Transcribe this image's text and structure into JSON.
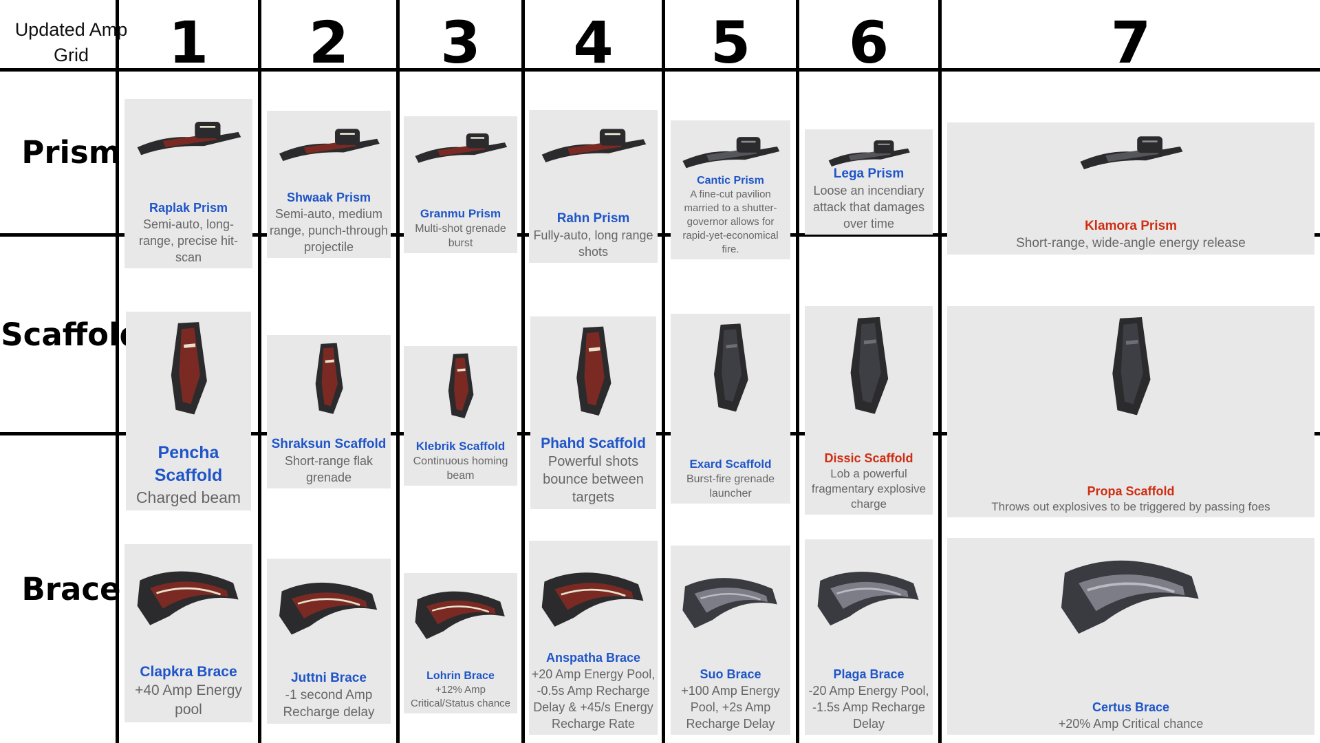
{
  "corner_label": "Updated Amp Grid",
  "columns": [
    "1",
    "2",
    "3",
    "4",
    "5",
    "6",
    "7"
  ],
  "rows": [
    "Prism",
    "Scaffold",
    "Brace"
  ],
  "colors": {
    "name_blue": "#1f55c8",
    "name_red": "#cf2e13",
    "desc_gray": "#666666",
    "grid_black": "#000000"
  },
  "cells": {
    "prism": [
      {
        "name": "Raplak Prism",
        "desc": "Semi-auto, long-range, precise hit-scan",
        "icon": "raplak-prism-icon",
        "name_color": "blue"
      },
      {
        "name": "Shwaak Prism",
        "desc": "Semi-auto, medium range, punch-through projectile",
        "icon": "shwaak-prism-icon",
        "name_color": "blue"
      },
      {
        "name": "Granmu Prism",
        "desc": "Multi-shot grenade burst",
        "icon": "granmu-prism-icon",
        "name_color": "blue"
      },
      {
        "name": "Rahn Prism",
        "desc": "Fully-auto, long range shots",
        "icon": "rahn-prism-icon",
        "name_color": "blue"
      },
      {
        "name": "Cantic Prism",
        "desc": "A fine-cut pavilion married to a shutter-governor allows for rapid-yet-economical fire.",
        "icon": "cantic-prism-icon",
        "name_color": "blue"
      },
      {
        "name": "Lega Prism",
        "desc": "Loose an incendiary attack that damages over time",
        "icon": "lega-prism-icon",
        "name_color": "blue"
      },
      {
        "name": "Klamora Prism",
        "desc": "Short-range, wide-angle energy release",
        "icon": "klamora-prism-icon",
        "name_color": "red"
      }
    ],
    "scaffold": [
      {
        "name": "Pencha Scaffold",
        "desc": "Charged beam",
        "icon": "pencha-scaffold-icon",
        "name_color": "blue"
      },
      {
        "name": "Shraksun Scaffold",
        "desc": "Short-range flak grenade",
        "icon": "shraksun-scaffold-icon",
        "name_color": "blue"
      },
      {
        "name": "Klebrik Scaffold",
        "desc": "Continuous homing beam",
        "icon": "klebrik-scaffold-icon",
        "name_color": "blue"
      },
      {
        "name": "Phahd Scaffold",
        "desc": "Powerful shots bounce between targets",
        "icon": "phahd-scaffold-icon",
        "name_color": "blue"
      },
      {
        "name": "Exard Scaffold",
        "desc": "Burst-fire grenade launcher",
        "icon": "exard-scaffold-icon",
        "name_color": "blue"
      },
      {
        "name": "Dissic Scaffold",
        "desc": "Lob a powerful fragmentary explosive charge",
        "icon": "dissic-scaffold-icon",
        "name_color": "red"
      },
      {
        "name": "Propa Scaffold",
        "desc": "Throws out explosives to be triggered by passing foes",
        "icon": "propa-scaffold-icon",
        "name_color": "red"
      }
    ],
    "brace": [
      {
        "name": "Clapkra Brace",
        "desc": "+40 Amp Energy pool",
        "icon": "clapkra-brace-icon",
        "name_color": "blue"
      },
      {
        "name": "Juttni Brace",
        "desc": "-1 second Amp Recharge delay",
        "icon": "juttni-brace-icon",
        "name_color": "blue"
      },
      {
        "name": "Lohrin Brace",
        "desc": "+12% Amp Critical/Status chance",
        "icon": "lohrin-brace-icon",
        "name_color": "blue"
      },
      {
        "name": "Anspatha Brace",
        "desc": "+20 Amp Energy Pool, -0.5s Amp Recharge Delay & +45/s Energy Recharge Rate",
        "icon": "anspatha-brace-icon",
        "name_color": "blue"
      },
      {
        "name": "Suo Brace",
        "desc": "+100 Amp Energy Pool, +2s Amp Recharge Delay",
        "icon": "suo-brace-icon",
        "name_color": "blue"
      },
      {
        "name": "Plaga Brace",
        "desc": "-20 Amp Energy Pool, -1.5s Amp Recharge Delay",
        "icon": "plaga-brace-icon",
        "name_color": "blue"
      },
      {
        "name": "Certus Brace",
        "desc": "+20% Amp Critical chance",
        "icon": "certus-brace-icon",
        "name_color": "blue"
      }
    ]
  }
}
